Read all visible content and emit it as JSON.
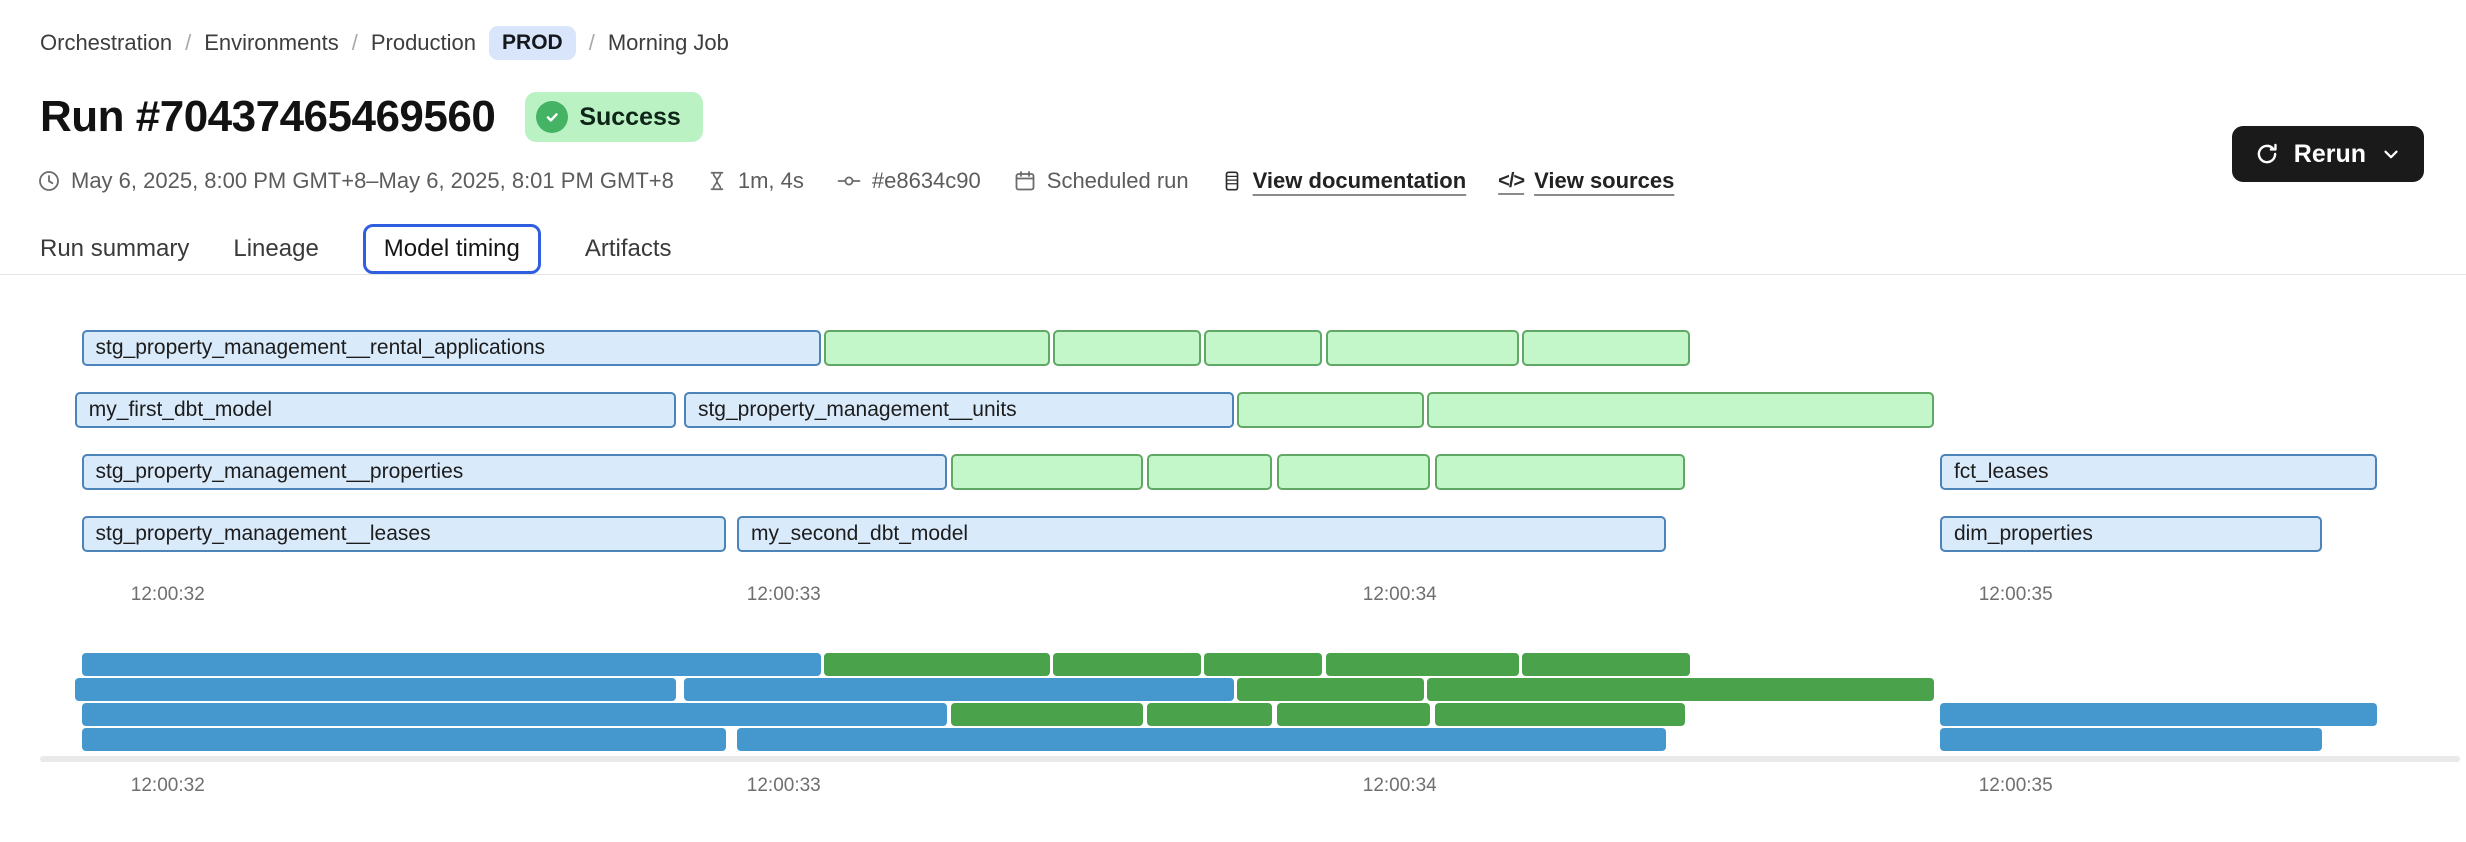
{
  "breadcrumb": {
    "separator": "/",
    "items": [
      "Orchestration",
      "Environments",
      "Production",
      "Morning Job"
    ],
    "env_badge": "PROD"
  },
  "header": {
    "title": "Run #70437465469560",
    "status_badge": "Success"
  },
  "meta": {
    "time_range": "May 6, 2025, 8:00 PM GMT+8–May 6, 2025, 8:01 PM GMT+8",
    "duration": "1m, 4s",
    "commit_sha": "#e8634c90",
    "trigger": "Scheduled run",
    "documentation_link": "View documentation",
    "sources_link": "View sources",
    "code_glyph": "</>"
  },
  "rerun_button": {
    "label": "Rerun"
  },
  "tabs": {
    "items": [
      "Run summary",
      "Lineage",
      "Model timing",
      "Artifacts"
    ],
    "active": "Model timing"
  },
  "theme": {
    "accent-blue": "#2f5fe0",
    "success-green": "#45b364",
    "success-badge-bg": "#baf2c4",
    "prod-pill-bg": "#d8e5fb",
    "rerun-bg": "#1a1a1a"
  },
  "chart_data": {
    "type": "gantt",
    "title": "Model timing",
    "x_axis": {
      "t_min": 31.825,
      "t_max": 35.731,
      "ticks": [
        {
          "t": 32,
          "label": "12:00:32"
        },
        {
          "t": 33,
          "label": "12:00:33"
        },
        {
          "t": 34,
          "label": "12:00:34"
        },
        {
          "t": 35,
          "label": "12:00:35"
        }
      ]
    },
    "colors": {
      "model-fill": "#d9eafb",
      "model-border": "#4c83b8",
      "seg-fill": "#c3f6c8",
      "seg-border": "#61a765",
      "mini-blue": "#4598ce",
      "mini-green": "#4aa24a"
    },
    "rows": [
      {
        "segments": [
          {
            "label": "stg_property_management__rental_applications",
            "color": "blue",
            "start": 31.86,
            "end": 33.06
          },
          {
            "color": "green",
            "start": 33.065,
            "end": 33.432
          },
          {
            "color": "green",
            "start": 33.437,
            "end": 33.677
          },
          {
            "color": "green",
            "start": 33.682,
            "end": 33.874
          },
          {
            "color": "green",
            "start": 33.88,
            "end": 34.193
          },
          {
            "color": "green",
            "start": 34.198,
            "end": 34.471
          }
        ]
      },
      {
        "segments": [
          {
            "label": "my_first_dbt_model",
            "color": "blue",
            "start": 31.849,
            "end": 32.825
          },
          {
            "label": "stg_property_management__units",
            "color": "blue",
            "start": 32.838,
            "end": 33.731
          },
          {
            "color": "green",
            "start": 33.735,
            "end": 34.039
          },
          {
            "color": "green",
            "start": 34.045,
            "end": 34.867
          }
        ]
      },
      {
        "segments": [
          {
            "label": "stg_property_management__properties",
            "color": "blue",
            "start": 31.86,
            "end": 33.265
          },
          {
            "color": "green",
            "start": 33.271,
            "end": 33.583
          },
          {
            "color": "green",
            "start": 33.589,
            "end": 33.792
          },
          {
            "color": "green",
            "start": 33.8,
            "end": 34.049
          },
          {
            "color": "green",
            "start": 34.057,
            "end": 34.463
          },
          {
            "label": "fct_leases",
            "color": "blue",
            "start": 34.877,
            "end": 35.586
          }
        ]
      },
      {
        "segments": [
          {
            "label": "stg_property_management__leases",
            "color": "blue",
            "start": 31.86,
            "end": 32.906
          },
          {
            "label": "my_second_dbt_model",
            "color": "blue",
            "start": 32.924,
            "end": 34.432
          },
          {
            "label": "dim_properties",
            "color": "blue",
            "start": 34.877,
            "end": 35.497
          }
        ]
      }
    ]
  }
}
